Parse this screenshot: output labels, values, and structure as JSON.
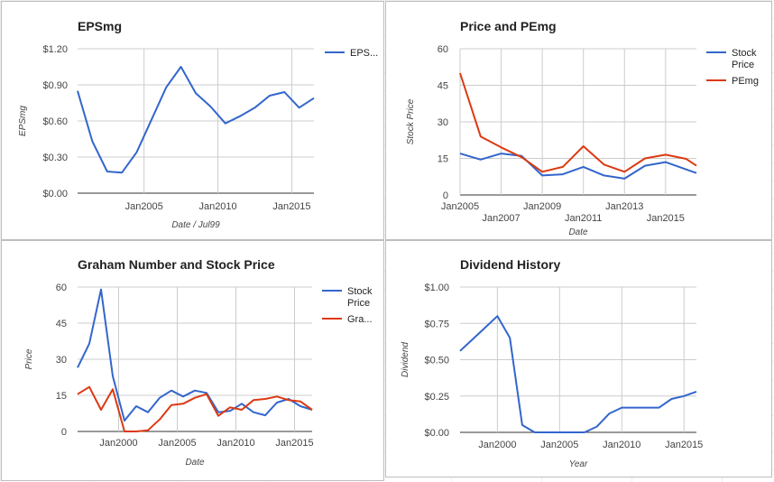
{
  "chart_data": [
    {
      "type": "line",
      "title": "EPSmg",
      "xlabel": "Date / Jul99",
      "ylabel": "EPSmg",
      "ylim": [
        0,
        1.2
      ],
      "xlim": [
        2000.5,
        2016.5
      ],
      "grid": true,
      "legend": "right",
      "yticks": [
        {
          "v": 0,
          "label": "$0.00"
        },
        {
          "v": 0.3,
          "label": "$0.30"
        },
        {
          "v": 0.6,
          "label": "$0.60"
        },
        {
          "v": 0.9,
          "label": "$0.90"
        },
        {
          "v": 1.2,
          "label": "$1.20"
        }
      ],
      "xticks": [
        {
          "v": 2005,
          "label": "Jan2005",
          "row": 0
        },
        {
          "v": 2010,
          "label": "Jan2010",
          "row": 0
        },
        {
          "v": 2015,
          "label": "Jan2015",
          "row": 0
        }
      ],
      "series": [
        {
          "name": "EPS...",
          "color": "#3366cc",
          "x": [
            2000.5,
            2001.5,
            2002.5,
            2003.5,
            2004.5,
            2005.5,
            2006.5,
            2007.5,
            2008.5,
            2009.5,
            2010.5,
            2011.5,
            2012.5,
            2013.5,
            2014.5,
            2015.5,
            2016.5
          ],
          "y": [
            0.85,
            0.43,
            0.18,
            0.17,
            0.34,
            0.61,
            0.88,
            1.05,
            0.83,
            0.72,
            0.58,
            0.64,
            0.71,
            0.81,
            0.84,
            0.71,
            0.79
          ]
        }
      ]
    },
    {
      "type": "line",
      "title": "Price and PEmg",
      "xlabel": "Date",
      "ylabel": "Stock Price",
      "ylim": [
        0,
        60
      ],
      "xlim": [
        2005,
        2016.5
      ],
      "grid": true,
      "legend": "right",
      "yticks": [
        {
          "v": 0,
          "label": "0"
        },
        {
          "v": 15,
          "label": "15"
        },
        {
          "v": 30,
          "label": "30"
        },
        {
          "v": 45,
          "label": "45"
        },
        {
          "v": 60,
          "label": "60"
        }
      ],
      "xticks": [
        {
          "v": 2005,
          "label": "Jan2005",
          "row": 0
        },
        {
          "v": 2007,
          "label": "Jan2007",
          "row": 1
        },
        {
          "v": 2009,
          "label": "Jan2009",
          "row": 0
        },
        {
          "v": 2011,
          "label": "Jan2011",
          "row": 1
        },
        {
          "v": 2013,
          "label": "Jan2013",
          "row": 0
        },
        {
          "v": 2015,
          "label": "Jan2015",
          "row": 1
        }
      ],
      "series": [
        {
          "name": "Stock Price",
          "color": "#3366cc",
          "x": [
            2005,
            2006,
            2007,
            2008,
            2009,
            2010,
            2011,
            2012,
            2013,
            2014,
            2015,
            2016,
            2016.5
          ],
          "y": [
            17,
            14.5,
            17,
            16,
            8,
            8.5,
            11.5,
            8,
            6.7,
            12,
            13.5,
            10.5,
            9
          ]
        },
        {
          "name": "PEmg",
          "color": "#dc3912",
          "x": [
            2005,
            2006,
            2007,
            2008,
            2009,
            2010,
            2011,
            2012,
            2013,
            2014,
            2015,
            2016,
            2016.5
          ],
          "y": [
            50,
            24,
            19.5,
            15.5,
            9.5,
            11.5,
            20,
            12.5,
            9.5,
            15,
            16.5,
            14.8,
            12
          ]
        }
      ]
    },
    {
      "type": "line",
      "title": "Graham Number and Stock Price",
      "xlabel": "Date",
      "ylabel": "Price",
      "ylim": [
        0,
        60
      ],
      "xlim": [
        1996.5,
        2016.5
      ],
      "grid": true,
      "legend": "right",
      "yticks": [
        {
          "v": 0,
          "label": "0"
        },
        {
          "v": 15,
          "label": "15"
        },
        {
          "v": 30,
          "label": "30"
        },
        {
          "v": 45,
          "label": "45"
        },
        {
          "v": 60,
          "label": "60"
        }
      ],
      "xticks": [
        {
          "v": 2000,
          "label": "Jan2000",
          "row": 0
        },
        {
          "v": 2005,
          "label": "Jan2005",
          "row": 0
        },
        {
          "v": 2010,
          "label": "Jan2010",
          "row": 0
        },
        {
          "v": 2015,
          "label": "Jan2015",
          "row": 0
        }
      ],
      "series": [
        {
          "name": "Stock Price",
          "color": "#3366cc",
          "x": [
            1996.5,
            1997.5,
            1998.5,
            1999.5,
            2000.5,
            2001.5,
            2002.5,
            2003.5,
            2004.5,
            2005.5,
            2006.5,
            2007.5,
            2008.5,
            2009.5,
            2010.5,
            2011.5,
            2012.5,
            2013.5,
            2014.5,
            2015.5,
            2016.5
          ],
          "y": [
            26.5,
            36.5,
            59,
            23,
            4.5,
            10.5,
            8,
            14,
            17,
            14.5,
            17,
            16,
            8,
            8.5,
            11.5,
            8,
            6.7,
            12,
            13.5,
            10.5,
            9
          ]
        },
        {
          "name": "Gra...",
          "color": "#dc3912",
          "x": [
            1996.5,
            1997.5,
            1998.5,
            1999.5,
            2000.5,
            2001.5,
            2002.5,
            2003.5,
            2004.5,
            2005.5,
            2006.5,
            2007.5,
            2008.5,
            2009.5,
            2010.5,
            2011.5,
            2012.5,
            2013.5,
            2014.5,
            2015.5,
            2016.5
          ],
          "y": [
            15.5,
            18.5,
            9,
            17.5,
            0,
            0,
            0.5,
            5,
            11,
            11.5,
            14,
            15.5,
            6.5,
            10,
            9,
            13,
            13.5,
            14.5,
            13,
            12.5,
            9
          ]
        }
      ]
    },
    {
      "type": "line",
      "title": "Dividend History",
      "xlabel": "Year",
      "ylabel": "Dividend",
      "ylim": [
        0,
        1
      ],
      "xlim": [
        1997,
        2016
      ],
      "grid": true,
      "legend": "none",
      "yticks": [
        {
          "v": 0,
          "label": "$0.00"
        },
        {
          "v": 0.25,
          "label": "$0.25"
        },
        {
          "v": 0.5,
          "label": "$0.50"
        },
        {
          "v": 0.75,
          "label": "$0.75"
        },
        {
          "v": 1,
          "label": "$1.00"
        }
      ],
      "xticks": [
        {
          "v": 2000,
          "label": "Jan2000",
          "row": 0
        },
        {
          "v": 2005,
          "label": "Jan2005",
          "row": 0
        },
        {
          "v": 2010,
          "label": "Jan2010",
          "row": 0
        },
        {
          "v": 2015,
          "label": "Jan2015",
          "row": 0
        }
      ],
      "series": [
        {
          "name": "",
          "color": "#3366cc",
          "x": [
            1997,
            1998,
            1999,
            2000,
            2001,
            2002,
            2003,
            2004,
            2005,
            2006,
            2007,
            2008,
            2009,
            2010,
            2011,
            2012,
            2013,
            2014,
            2015,
            2016
          ],
          "y": [
            0.56,
            0.64,
            0.72,
            0.8,
            0.65,
            0.05,
            0,
            0,
            0,
            0,
            0,
            0.04,
            0.13,
            0.17,
            0.17,
            0.17,
            0.17,
            0.23,
            0.25,
            0.28
          ]
        }
      ]
    }
  ]
}
